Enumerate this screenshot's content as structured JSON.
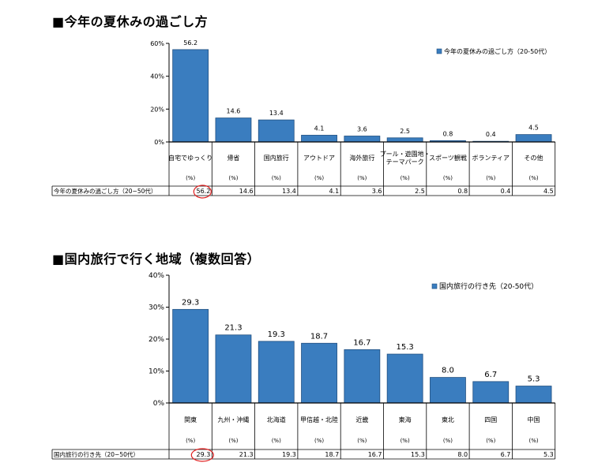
{
  "chart_data": [
    {
      "type": "bar",
      "title": "■今年の夏休みの過ごし方",
      "legend": "今年の夏休みの過ごし方（20-50代）",
      "legend_position": "top-right",
      "categories": [
        "自宅でゆっくり",
        "帰省",
        "国内旅行",
        "アウトドア",
        "海外旅行",
        "プール・遊園地・テーマパーク",
        "スポーツ観戦",
        "ボランティア",
        "その他"
      ],
      "values": [
        56.2,
        14.6,
        13.4,
        4.1,
        3.6,
        2.5,
        0.8,
        0.4,
        4.5
      ],
      "value_labels": [
        "56.2",
        "14.6",
        "13.4",
        "4.1",
        "3.6",
        "2.5",
        "0.8",
        "0.4",
        "4.5"
      ],
      "unit_label": "(%)",
      "row_label": "今年の夏休みの過ごし方（20−50代）",
      "ylim": [
        0,
        60
      ],
      "yticks": [
        0,
        20,
        40,
        60
      ],
      "ytick_labels": [
        "0%",
        "20%",
        "40%",
        "60%"
      ],
      "circled_index": 0,
      "bar_color": "#3a7dbf"
    },
    {
      "type": "bar",
      "title": "■国内旅行で行く地域（複数回答）",
      "legend": "国内旅行の行き先（20-50代）",
      "legend_position": "top-right",
      "categories": [
        "関東",
        "九州・沖縄",
        "北海道",
        "甲信越・北陸",
        "近畿",
        "東海",
        "東北",
        "四国",
        "中国"
      ],
      "values": [
        29.3,
        21.3,
        19.3,
        18.7,
        16.7,
        15.3,
        8.0,
        6.7,
        5.3
      ],
      "value_labels": [
        "29.3",
        "21.3",
        "19.3",
        "18.7",
        "16.7",
        "15.3",
        "8.0",
        "6.7",
        "5.3"
      ],
      "unit_label": "(%)",
      "row_label": "国内旅行の行き先（20−50代）",
      "ylim": [
        0,
        40
      ],
      "yticks": [
        0,
        10,
        20,
        30,
        40
      ],
      "ytick_labels": [
        "0%",
        "10%",
        "20%",
        "30%",
        "40%"
      ],
      "circled_index": 0,
      "bar_color": "#3a7dbf",
      "circle_color": "#e02020"
    }
  ]
}
